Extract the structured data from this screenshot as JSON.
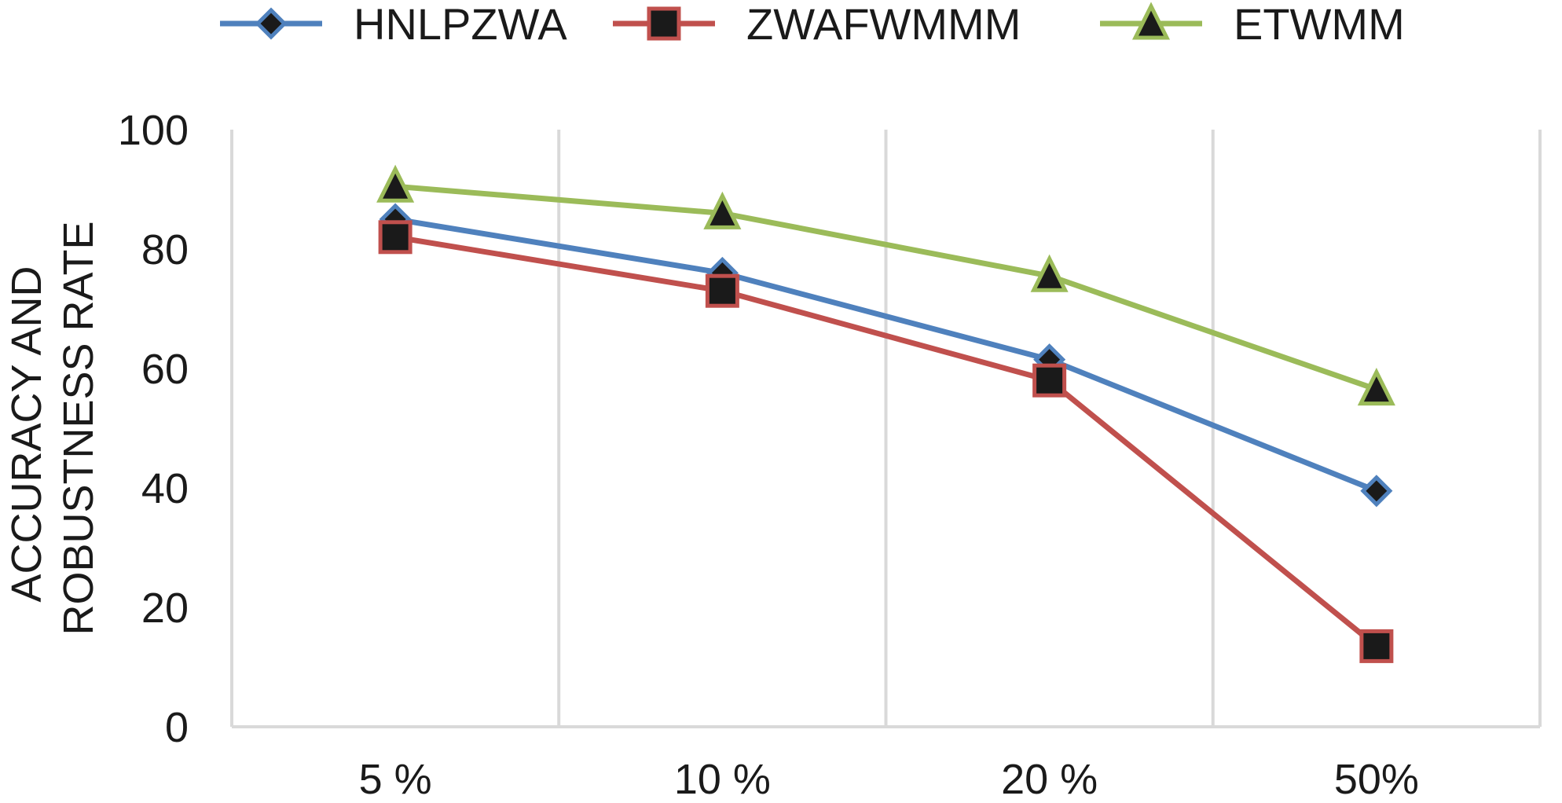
{
  "chart_data": {
    "type": "line",
    "categories": [
      "5 %",
      "10 %",
      "20 %",
      "50%"
    ],
    "ylabel_lines": [
      "ACCURACY AND",
      "ROBUSTNESS RATE"
    ],
    "xlabel": "",
    "ylim": [
      0,
      100
    ],
    "yticks": [
      "0",
      "20",
      "40",
      "60",
      "80",
      "100"
    ],
    "grid": "vertical",
    "legend_position": "top",
    "series": [
      {
        "name": "HNLPZWA",
        "values": [
          85,
          76,
          61.5,
          39.5
        ],
        "color": "#4f81bd",
        "marker": "diamond"
      },
      {
        "name": "ZWAFWMMM",
        "values": [
          82,
          73,
          58,
          13.5
        ],
        "color": "#c0504d",
        "marker": "square"
      },
      {
        "name": "ETWMM",
        "values": [
          90.5,
          86,
          75.5,
          56.5
        ],
        "color": "#9bbb59",
        "marker": "triangle"
      }
    ]
  }
}
